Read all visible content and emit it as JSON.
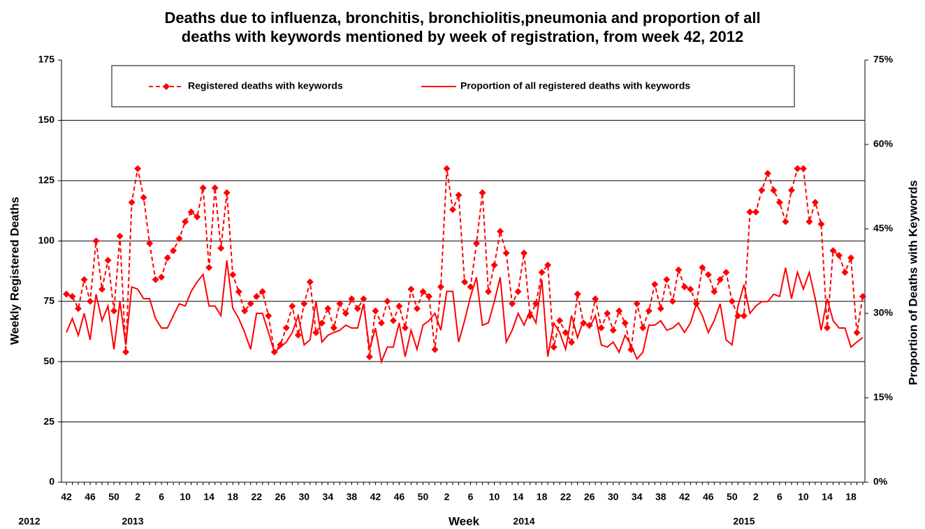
{
  "chart_data": {
    "type": "line",
    "title": [
      "Deaths due to influenza, bronchitis, bronchiolitis,pneumonia and proportion of all",
      "deaths with keywords mentioned by week of registration, from week 42, 2012"
    ],
    "x_label": "Week",
    "y_label": "Weekly Registered Deaths",
    "y2_label": "Proportion of Deaths with Keywords",
    "year_labels": [
      "2012",
      "2013",
      "2014",
      "2015"
    ],
    "categories": [
      "42",
      null,
      null,
      null,
      "46",
      null,
      null,
      null,
      "50",
      null,
      null,
      null,
      "2",
      null,
      null,
      null,
      "6",
      null,
      null,
      null,
      "10",
      null,
      null,
      null,
      "14",
      null,
      null,
      null,
      "18",
      null,
      null,
      null,
      "22",
      null,
      null,
      null,
      "26",
      null,
      null,
      null,
      "30",
      null,
      null,
      null,
      "34",
      null,
      null,
      null,
      "38",
      null,
      null,
      null,
      "42",
      null,
      null,
      null,
      "46",
      null,
      null,
      null,
      "50",
      null,
      null,
      null,
      "2",
      null,
      null,
      null,
      "6",
      null,
      null,
      null,
      "10",
      null,
      null,
      null,
      "14",
      null,
      null,
      null,
      "18",
      null,
      null,
      null,
      "22",
      null,
      null,
      null,
      "26",
      null,
      null,
      null,
      "30",
      null,
      null,
      null,
      "34",
      null,
      null,
      null,
      "38",
      null,
      null,
      null,
      "42",
      null,
      null,
      null,
      "46",
      null,
      null,
      null,
      "50",
      null,
      null,
      null,
      "2",
      null,
      null,
      null,
      "6",
      null,
      null,
      null,
      "10",
      null,
      null,
      null,
      "14",
      null,
      null,
      null,
      "18",
      null,
      null
    ],
    "ylim": [
      0,
      175
    ],
    "yticks": [
      0,
      25,
      50,
      75,
      100,
      125,
      150,
      175
    ],
    "y2lim": [
      0,
      75
    ],
    "y2ticks": [
      {
        "value": 0,
        "label": "0%"
      },
      {
        "value": 15,
        "label": "15%"
      },
      {
        "value": 30,
        "label": "30%"
      },
      {
        "value": 45,
        "label": "45%"
      },
      {
        "value": 60,
        "label": "60%"
      },
      {
        "value": 75,
        "label": "75%"
      }
    ],
    "grid": true,
    "legend": "top",
    "series": [
      {
        "name": "Registered deaths with keywords",
        "color": "#ff0000",
        "style": "dashed",
        "marker": "diamond",
        "values": [
          78,
          77,
          72,
          84,
          75,
          100,
          80,
          92,
          71,
          102,
          54,
          116,
          130,
          118,
          99,
          84,
          85,
          93,
          96,
          101,
          108,
          112,
          110,
          122,
          89,
          122,
          97,
          120,
          86,
          79,
          71,
          74,
          77,
          79,
          69,
          54,
          57,
          64,
          73,
          61,
          74,
          83,
          62,
          66,
          72,
          64,
          74,
          70,
          76,
          72,
          76,
          52,
          71,
          66,
          75,
          67,
          73,
          64,
          80,
          72,
          79,
          77,
          55,
          81,
          130,
          113,
          119,
          83,
          81,
          99,
          120,
          79,
          90,
          104,
          95,
          74,
          79,
          95,
          69,
          74,
          87,
          90,
          56,
          67,
          62,
          58,
          78,
          66,
          65,
          76,
          64,
          70,
          63,
          71,
          66,
          55,
          74,
          64,
          71,
          82,
          72,
          84,
          75,
          88,
          81,
          80,
          74,
          89,
          86,
          79,
          84,
          87,
          75,
          69,
          69,
          112,
          112,
          121,
          128,
          121,
          116,
          108,
          121,
          130,
          130,
          108,
          116,
          107,
          64,
          96,
          94,
          87,
          93,
          62,
          77
        ]
      },
      {
        "name": "Proportion of all registered deaths with keywords",
        "color": "#ff0000",
        "style": "solid",
        "axis": "y2",
        "values": [
          26.6,
          29.1,
          26.1,
          30,
          25.3,
          33.4,
          28.7,
          31.3,
          23.6,
          32.1,
          24.4,
          34.7,
          34.3,
          32.6,
          32.6,
          29.1,
          27.4,
          27.4,
          29.6,
          31.7,
          31.3,
          33.9,
          35.6,
          36.9,
          31.3,
          31.3,
          29.6,
          39.4,
          30.9,
          29.1,
          26.6,
          23.6,
          30,
          30,
          26.6,
          23.1,
          24,
          24.9,
          26.6,
          29.6,
          24.4,
          25.3,
          32.1,
          24.9,
          26.1,
          26.6,
          27,
          27.9,
          27.4,
          27.4,
          31.7,
          23.6,
          27.4,
          21.4,
          24,
          24,
          28.3,
          22.3,
          27,
          23.6,
          27.9,
          28.7,
          30,
          27,
          33.9,
          33.9,
          24.9,
          28.7,
          33,
          36.4,
          27.9,
          28.3,
          32.1,
          36.4,
          24.9,
          27,
          30,
          27.9,
          30.4,
          28.3,
          36,
          22.3,
          28.3,
          26.6,
          23.6,
          29.6,
          25.7,
          28.7,
          27.4,
          29.6,
          24.4,
          24,
          24.9,
          23.1,
          26.1,
          24.4,
          21.9,
          23.1,
          27.9,
          27.9,
          28.7,
          27,
          27.4,
          28.3,
          26.6,
          28.3,
          31.7,
          29.6,
          26.6,
          28.7,
          31.7,
          25.3,
          24.4,
          31.3,
          35.1,
          30,
          31.3,
          32.1,
          32.1,
          33.4,
          33,
          38.1,
          32.6,
          37.3,
          34.3,
          37.3,
          32.6,
          27,
          32.6,
          28.7,
          27.4,
          27.4,
          24,
          24.9,
          25.7
        ]
      }
    ]
  }
}
